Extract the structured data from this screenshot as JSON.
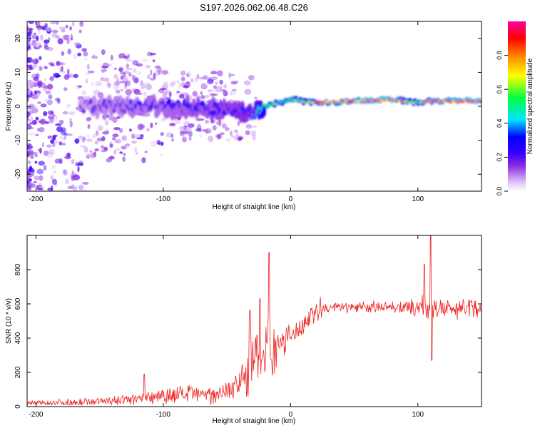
{
  "figure_title": "S197.2026.062.06.48.C26",
  "chart_data": [
    {
      "type": "heatmap",
      "title": "S197.2026.062.06.48.C26",
      "xlabel": "Height of straight line (km)",
      "ylabel": "Frequency (Hz)",
      "xlim": [
        -207,
        150
      ],
      "ylim": [
        -25,
        25
      ],
      "xticks": [
        -200,
        -100,
        0,
        100
      ],
      "xtick_labels": [
        "-200",
        "-100",
        "0",
        "100"
      ],
      "yticks": [
        -20,
        -10,
        0,
        10,
        20
      ],
      "ytick_labels": [
        "-20",
        "-10",
        "0",
        "10",
        "20"
      ],
      "colorbar": {
        "label": "Normalized spectral amplitude",
        "range": [
          0,
          1
        ],
        "ticks": [
          0.0,
          0.2,
          0.4,
          0.6,
          0.8
        ],
        "tick_labels": [
          "0.0",
          "0.2",
          "0.4",
          "0.6",
          "0.8"
        ],
        "colors": [
          "#ffffff",
          "#d8b8f8",
          "#8a2be2",
          "#3a00ff",
          "#0000ff",
          "#00e5ff",
          "#00ff40",
          "#ffff00",
          "#ff8000",
          "#ff0000",
          "#ff00a0"
        ]
      },
      "ridge": {
        "description_points_x": [
          -200,
          -150,
          -100,
          -50,
          -30,
          -20,
          0,
          20,
          50,
          80,
          100,
          110,
          150
        ],
        "frequency": [
          0,
          0,
          0,
          -1,
          -2,
          0,
          2,
          1,
          1.5,
          2,
          1,
          1.5,
          1.5
        ],
        "amplitude": [
          0.08,
          0.2,
          0.25,
          0.3,
          0.35,
          0.6,
          0.55,
          0.8,
          0.85,
          0.9,
          0.6,
          0.85,
          0.9
        ]
      }
    },
    {
      "type": "line",
      "xlabel": "Height of straight line (km)",
      "ylabel": "SNR (10 * v/v)",
      "xlim": [
        -207,
        150
      ],
      "ylim": [
        0,
        1000
      ],
      "xticks": [
        -200,
        -100,
        0,
        100
      ],
      "xtick_labels": [
        "-200",
        "-100",
        "0",
        "100"
      ],
      "yticks": [
        0,
        200,
        400,
        600,
        800
      ],
      "ytick_labels": [
        "0",
        "200",
        "400",
        "600",
        "800"
      ],
      "series": [
        {
          "name": "SNR",
          "color": "#ee2222",
          "x": [
            -207,
            -180,
            -150,
            -120,
            -100,
            -80,
            -60,
            -45,
            -35,
            -28,
            -23,
            -18,
            -12,
            -5,
            0,
            10,
            20,
            30,
            40,
            60,
            80,
            95,
            105,
            110,
            115,
            130,
            150
          ],
          "y": [
            20,
            25,
            30,
            45,
            70,
            70,
            75,
            110,
            180,
            270,
            320,
            340,
            350,
            380,
            410,
            480,
            560,
            575,
            580,
            580,
            585,
            570,
            590,
            560,
            570,
            575,
            575
          ],
          "spikes": [
            {
              "x": -115,
              "y": 190
            },
            {
              "x": -32,
              "y": 560
            },
            {
              "x": -24,
              "y": 630
            },
            {
              "x": -17,
              "y": 900
            },
            {
              "x": 105,
              "y": 830
            },
            {
              "x": 110,
              "y": 1000
            },
            {
              "x": 111,
              "y": 270
            }
          ]
        }
      ]
    }
  ]
}
